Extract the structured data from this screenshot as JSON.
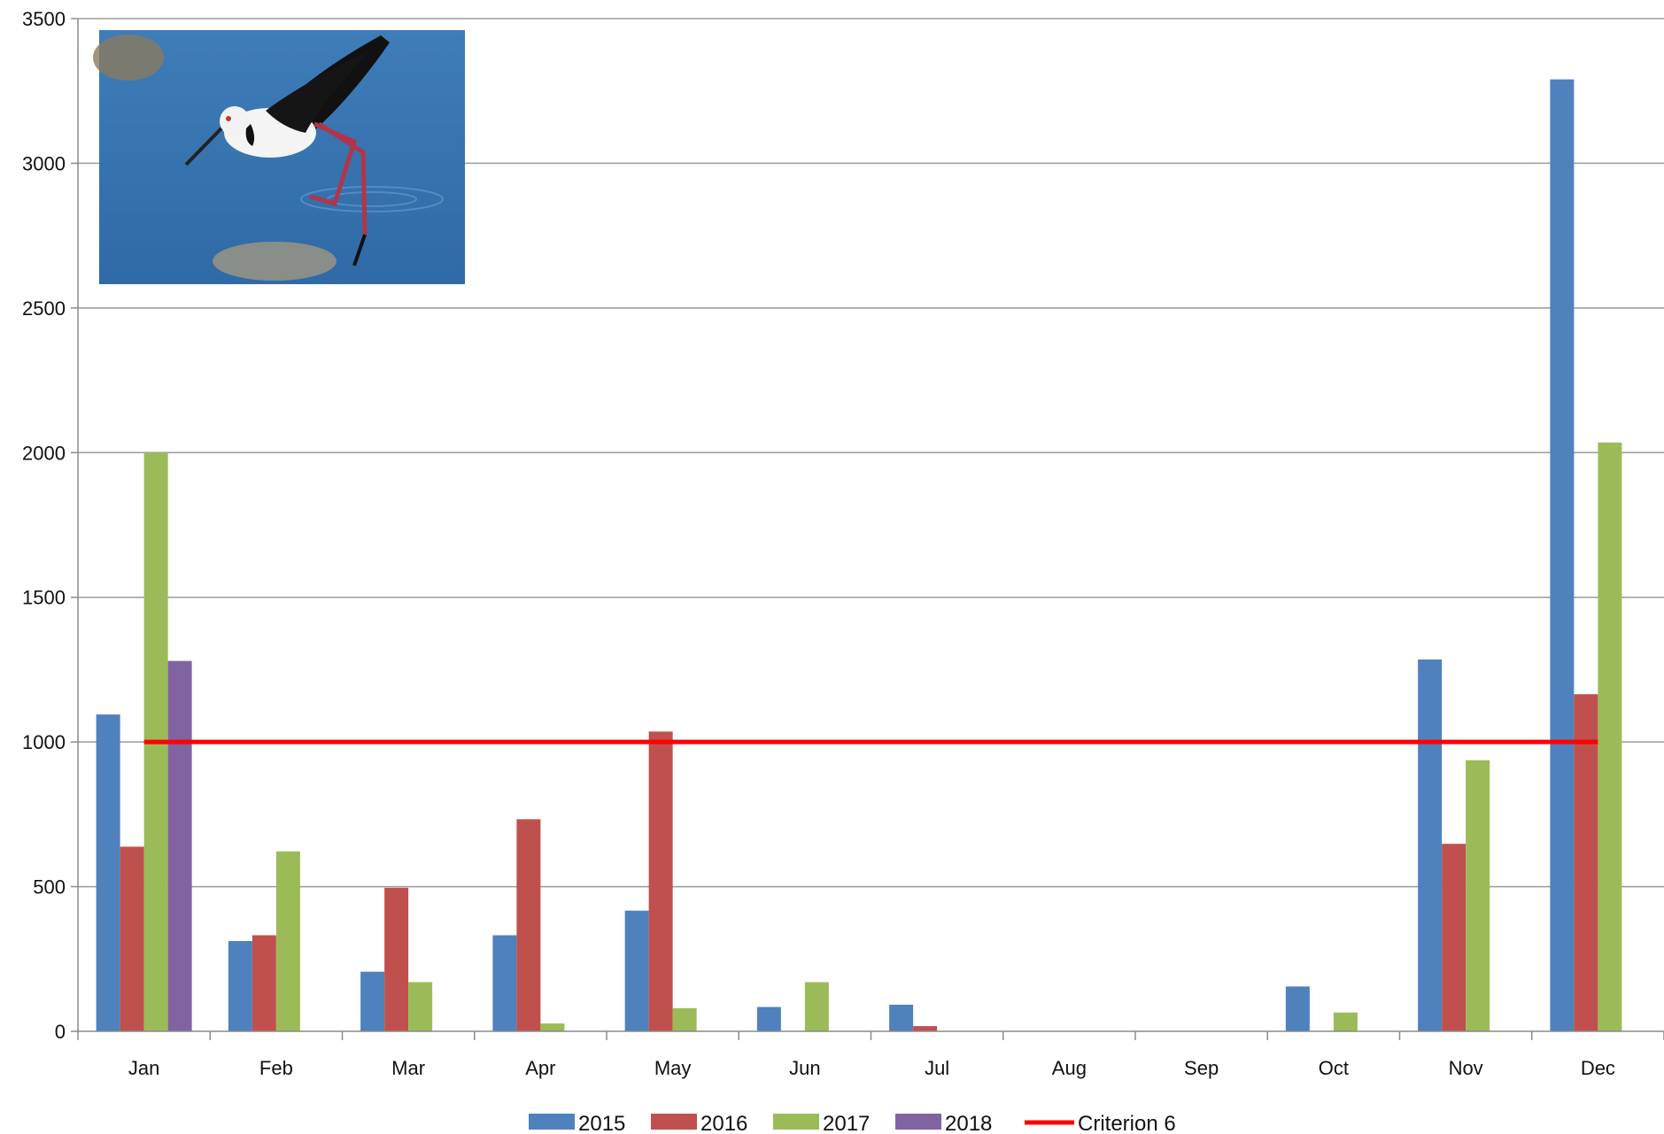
{
  "chart_data": {
    "type": "bar",
    "categories": [
      "Jan",
      "Feb",
      "Mar",
      "Apr",
      "May",
      "Jun",
      "Jul",
      "Aug",
      "Sep",
      "Oct",
      "Nov",
      "Dec"
    ],
    "series": [
      {
        "name": "2015",
        "color": "#4F81BD",
        "values": [
          1095,
          312,
          206,
          332,
          417,
          84,
          92,
          0,
          0,
          155,
          1285,
          3290
        ]
      },
      {
        "name": "2016",
        "color": "#C0504D",
        "values": [
          638,
          332,
          496,
          733,
          1036,
          0,
          18,
          0,
          0,
          0,
          648,
          1165
        ]
      },
      {
        "name": "2017",
        "color": "#9BBB59",
        "values": [
          2000,
          622,
          170,
          27,
          80,
          170,
          0,
          0,
          0,
          65,
          937,
          2035
        ]
      },
      {
        "name": "2018",
        "color": "#8064A2",
        "values": [
          1280,
          0,
          0,
          0,
          0,
          0,
          0,
          0,
          0,
          0,
          0,
          0
        ]
      }
    ],
    "reference_line": {
      "name": "Criterion 6",
      "value": 1000,
      "color": "#FF0000",
      "from": "Jan",
      "to": "Dec"
    },
    "ylim": [
      0,
      3500
    ],
    "yticks": [
      0,
      500,
      1000,
      1500,
      2000,
      2500,
      3000,
      3500
    ],
    "title": "",
    "xlabel": "",
    "ylabel": "",
    "grid": true,
    "legend": "bottom",
    "inset_image": "black-winged-stilt-photo"
  }
}
